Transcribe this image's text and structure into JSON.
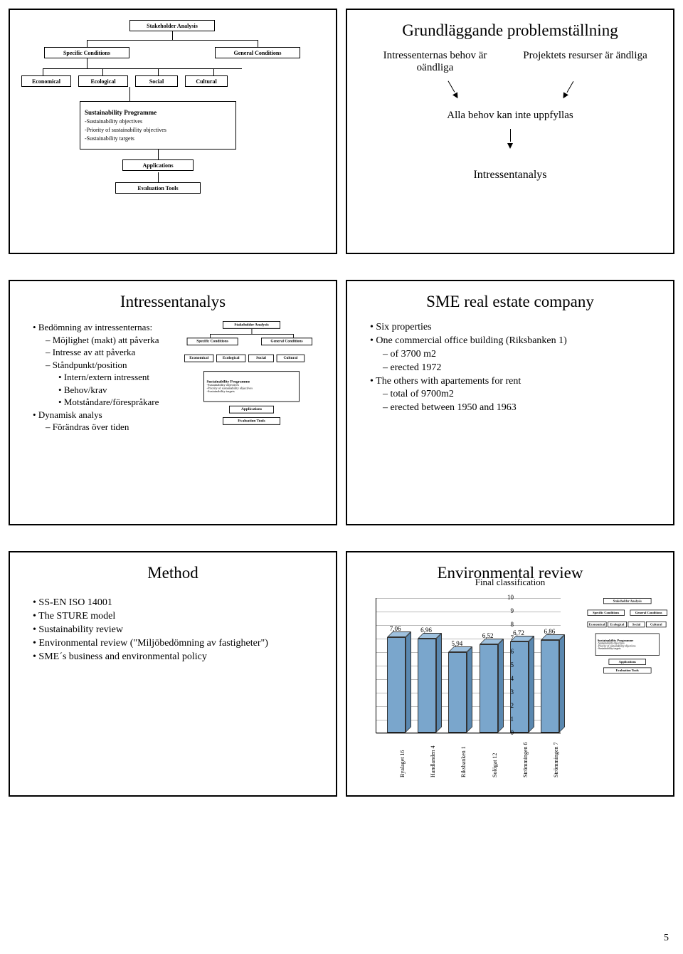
{
  "page_number": "5",
  "figure": {
    "boxes": {
      "stakeholder": "Stakeholder Analysis",
      "specific": "Specific Conditions",
      "general": "General Conditions",
      "economical": "Economical",
      "ecological": "Ecological",
      "social": "Social",
      "cultural": "Cultural",
      "programme": "Sustainability Programme",
      "obj1": "-Sustainability objectives",
      "obj2": "-Priority of sustainability objectives",
      "obj3": "-Sustainability targets",
      "applications": "Applications",
      "evaluation": "Evaluation Tools"
    }
  },
  "slide2": {
    "title": "Grundläggande problemställning",
    "left": "Intressenternas behov är oändliga",
    "right": "Projektets resurser är ändliga",
    "mid": "Alla behov kan inte uppfyllas",
    "final": "Intressentanalys"
  },
  "slide3": {
    "title": "Intressentanalys",
    "b1": "Bedömning av intressenternas:",
    "b1a": "Möjlighet (makt) att påverka",
    "b1b": "Intresse av att påverka",
    "b1c": "Ståndpunkt/position",
    "b1c1": "Intern/extern intressent",
    "b1c2": "Behov/krav",
    "b1c3": "Motståndare/förespråkare",
    "b2": "Dynamisk analys",
    "b2a": "Förändras över tiden"
  },
  "slide4": {
    "title": "SME real estate company",
    "p1": "Six properties",
    "p2": "One commercial office building (Riksbanken 1)",
    "p2a": "of 3700 m2",
    "p2b": "erected 1972",
    "p3": "The others with apartements for rent",
    "p3a": "total of 9700m2",
    "p3b": "erected between 1950 and 1963"
  },
  "slide5": {
    "title": "Method",
    "m1": "SS-EN ISO 14001",
    "m2": "The STURE model",
    "m3": "Sustainability review",
    "m4": "Environmental review (\"Miljöbedömning av fastigheter\")",
    "m5": "SME´s business and environmental policy"
  },
  "slide6": {
    "title": "Environmental review",
    "subtitle": "Final classification",
    "chart": {
      "labels": [
        "Byalaget 16",
        "Handlanden 4",
        "Riksbanken 1",
        "Solögat 12",
        "Strömmingen 6",
        "Strömmingen 7"
      ],
      "values": [
        7.06,
        6.96,
        5.94,
        6.52,
        6.72,
        6.86
      ],
      "ymax": 10,
      "bar_face": "#7aa6cc",
      "bar_top": "#9fc1de",
      "bar_side": "#5a88b0",
      "grid_color": "#bbbbbb"
    }
  }
}
